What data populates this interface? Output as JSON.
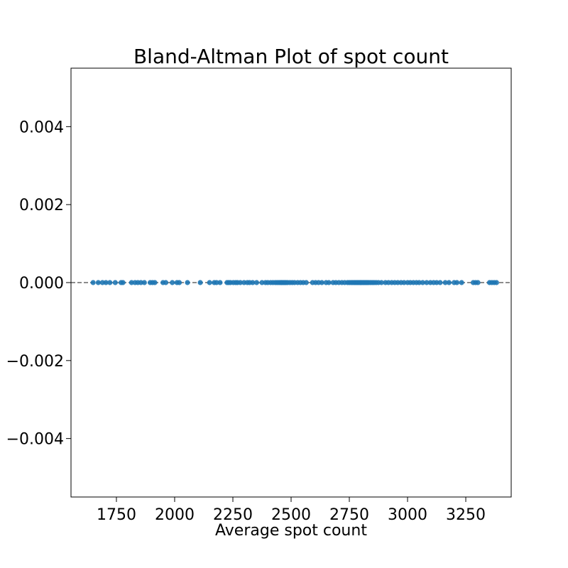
{
  "chart_data": {
    "type": "scatter",
    "title": "Bland-Altman Plot of spot count",
    "xlabel": "Average spot count",
    "ylabel": "",
    "xlim": [
      1555,
      1000000
    ],
    "ylim": [
      -0.0055,
      0.0055
    ],
    "x_ticks": [
      1750,
      2000,
      2250,
      2500,
      2750,
      3000,
      3250
    ],
    "x_tick_labels": [
      "1750",
      "2000",
      "2250",
      "2500",
      "2750",
      "3000",
      "3250"
    ],
    "y_ticks": [
      0.004,
      0.002,
      0.0,
      -0.002,
      -0.004
    ],
    "y_tick_labels": [
      "0.004",
      "0.002",
      "0.000",
      "−0.002",
      "−0.004"
    ],
    "mean_line": 0.0,
    "grid": false,
    "colors": {
      "points": "#1f77b4",
      "mean_line": "#666666"
    },
    "points": {
      "y": 0.0,
      "x": [
        1650,
        1672,
        1690,
        1705,
        1722,
        1745,
        1770,
        1778,
        1815,
        1830,
        1842,
        1855,
        1870,
        1895,
        1905,
        1915,
        1950,
        1962,
        1990,
        2010,
        2020,
        2055,
        2110,
        2150,
        2170,
        2180,
        2195,
        2225,
        2232,
        2240,
        2252,
        2262,
        2270,
        2282,
        2298,
        2312,
        2322,
        2335,
        2352,
        2375,
        2390,
        2400,
        2412,
        2422,
        2432,
        2440,
        2448,
        2455,
        2460,
        2466,
        2472,
        2478,
        2485,
        2495,
        2505,
        2515,
        2528,
        2540,
        2552,
        2565,
        2592,
        2605,
        2618,
        2632,
        2650,
        2662,
        2680,
        2692,
        2705,
        2718,
        2730,
        2742,
        2750,
        2758,
        2765,
        2772,
        2778,
        2784,
        2790,
        2796,
        2802,
        2808,
        2814,
        2820,
        2826,
        2832,
        2840,
        2848,
        2856,
        2865,
        2875,
        2888,
        2905,
        2918,
        2932,
        2945,
        2958,
        2972,
        2985,
        3000,
        3012,
        3025,
        3038,
        3050,
        3065,
        3082,
        3098,
        3112,
        3125,
        3140,
        3162,
        3178,
        3200,
        3212,
        3232,
        3282,
        3292,
        3302,
        3352,
        3362,
        3372,
        3382
      ]
    }
  }
}
